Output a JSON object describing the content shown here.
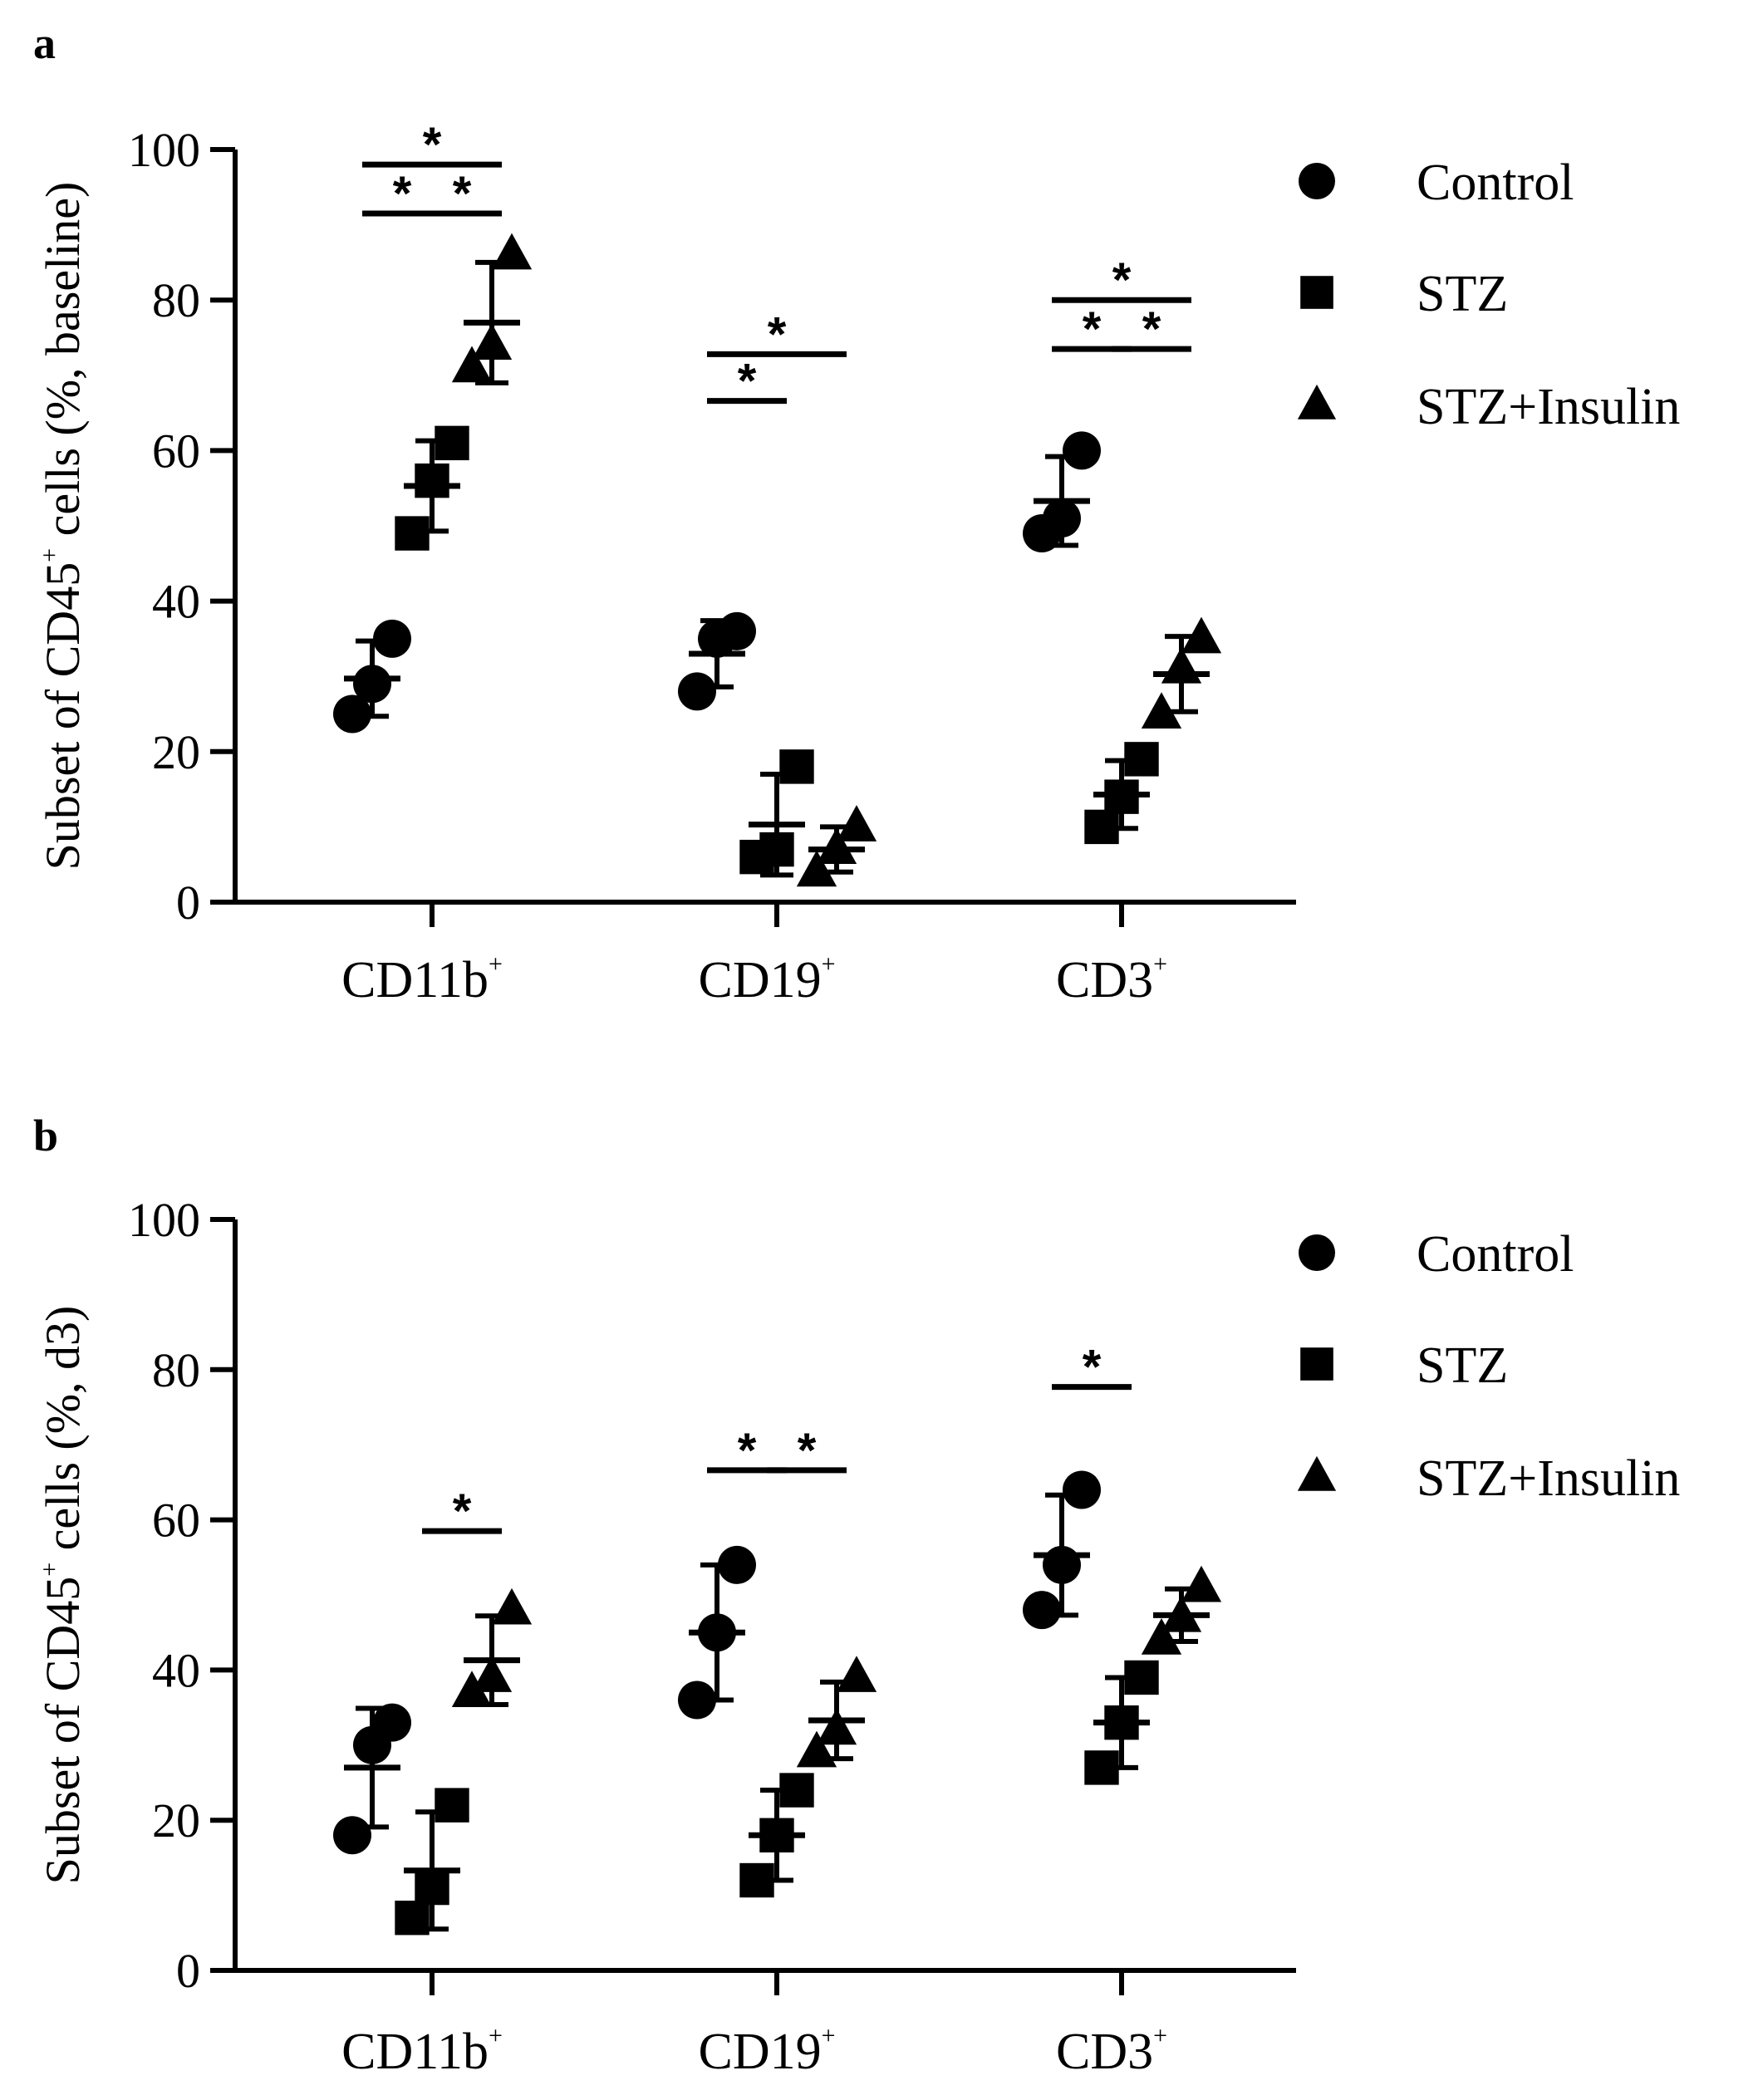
{
  "chart_data": [
    {
      "panel_label": "a",
      "type": "scatter",
      "ylabel_main": "Subset of CD45",
      "ylabel_sup": "+",
      "ylabel_tail": " cells (%, baseline)",
      "ylim": [
        0,
        100
      ],
      "yticks": [
        "0",
        "20",
        "40",
        "60",
        "80",
        "100"
      ],
      "categories": [
        {
          "name": "CD11b",
          "sup": "+"
        },
        {
          "name": "CD19",
          "sup": "+"
        },
        {
          "name": "CD3",
          "sup": "+"
        }
      ],
      "series": [
        {
          "name": "Control",
          "marker": "circle",
          "points": [
            [
              25,
              35,
              29
            ],
            [
              28,
              36,
              35
            ],
            [
              49,
              60,
              51
            ]
          ],
          "mean": [
            29.7,
            33,
            53.3
          ],
          "sd": [
            5,
            4.4,
            5.9
          ]
        },
        {
          "name": "STZ",
          "marker": "square",
          "points": [
            [
              49,
              61,
              56
            ],
            [
              6,
              18,
              7
            ],
            [
              10,
              19,
              14
            ]
          ],
          "mean": [
            55.3,
            10.3,
            14.3
          ],
          "sd": [
            6,
            6.7,
            4.5
          ]
        },
        {
          "name": "STZ+Insulin",
          "marker": "triangle",
          "points": [
            [
              71,
              86,
              74
            ],
            [
              4,
              10,
              7
            ],
            [
              25,
              35,
              31
            ]
          ],
          "mean": [
            77,
            7,
            30.3
          ],
          "sd": [
            8,
            3,
            5
          ]
        }
      ],
      "significance": [
        {
          "category": 0,
          "from": 0,
          "to": 2,
          "y": 98,
          "label": "*"
        },
        {
          "category": 0,
          "from": 0,
          "to": 1,
          "y": 91.5,
          "label": "*"
        },
        {
          "category": 0,
          "from": 1,
          "to": 2,
          "y": 91.5,
          "label": "*"
        },
        {
          "category": 1,
          "from": 0,
          "to": 2,
          "y": 72.8,
          "label": "*"
        },
        {
          "category": 1,
          "from": 0,
          "to": 1,
          "y": 66.6,
          "label": "*"
        },
        {
          "category": 2,
          "from": 0,
          "to": 2,
          "y": 80,
          "label": "*"
        },
        {
          "category": 2,
          "from": 0,
          "to": 1,
          "y": 73.5,
          "label": "*"
        },
        {
          "category": 2,
          "from": 1,
          "to": 2,
          "y": 73.5,
          "label": "*"
        }
      ]
    },
    {
      "panel_label": "b",
      "type": "scatter",
      "ylabel_main": "Subset of CD45",
      "ylabel_sup": "+",
      "ylabel_tail": " cells (%, d3)",
      "ylim": [
        0,
        100
      ],
      "yticks": [
        "0",
        "20",
        "40",
        "60",
        "80",
        "100"
      ],
      "categories": [
        {
          "name": "CD11b",
          "sup": "+"
        },
        {
          "name": "CD19",
          "sup": "+"
        },
        {
          "name": "CD3",
          "sup": "+"
        }
      ],
      "series": [
        {
          "name": "Control",
          "marker": "circle",
          "points": [
            [
              18,
              33,
              30
            ],
            [
              36,
              54,
              45
            ],
            [
              48,
              64,
              54
            ]
          ],
          "mean": [
            27,
            45,
            55.3
          ],
          "sd": [
            7.9,
            9,
            8
          ]
        },
        {
          "name": "STZ",
          "marker": "square",
          "points": [
            [
              7,
              22,
              11
            ],
            [
              12,
              24,
              18
            ],
            [
              27,
              39,
              33
            ]
          ],
          "mean": [
            13.3,
            18,
            33
          ],
          "sd": [
            7.8,
            6,
            6
          ]
        },
        {
          "name": "STZ+Insulin",
          "marker": "triangle",
          "points": [
            [
              37,
              48,
              39
            ],
            [
              29,
              39,
              32
            ],
            [
              44,
              51,
              47
            ]
          ],
          "mean": [
            41.3,
            33.3,
            47.3
          ],
          "sd": [
            5.9,
            5.1,
            3.5
          ]
        }
      ],
      "significance": [
        {
          "category": 0,
          "from": 1,
          "to": 2,
          "y": 58.5,
          "label": "*"
        },
        {
          "category": 1,
          "from": 0,
          "to": 1,
          "y": 66.6,
          "label": "*"
        },
        {
          "category": 1,
          "from": 1,
          "to": 2,
          "y": 66.6,
          "label": "*"
        },
        {
          "category": 2,
          "from": 0,
          "to": 1,
          "y": 77.7,
          "label": "*"
        }
      ]
    }
  ],
  "legend": [
    {
      "label": "Control",
      "marker": "circle"
    },
    {
      "label": "STZ",
      "marker": "square"
    },
    {
      "label": "STZ+Insulin",
      "marker": "triangle"
    }
  ]
}
